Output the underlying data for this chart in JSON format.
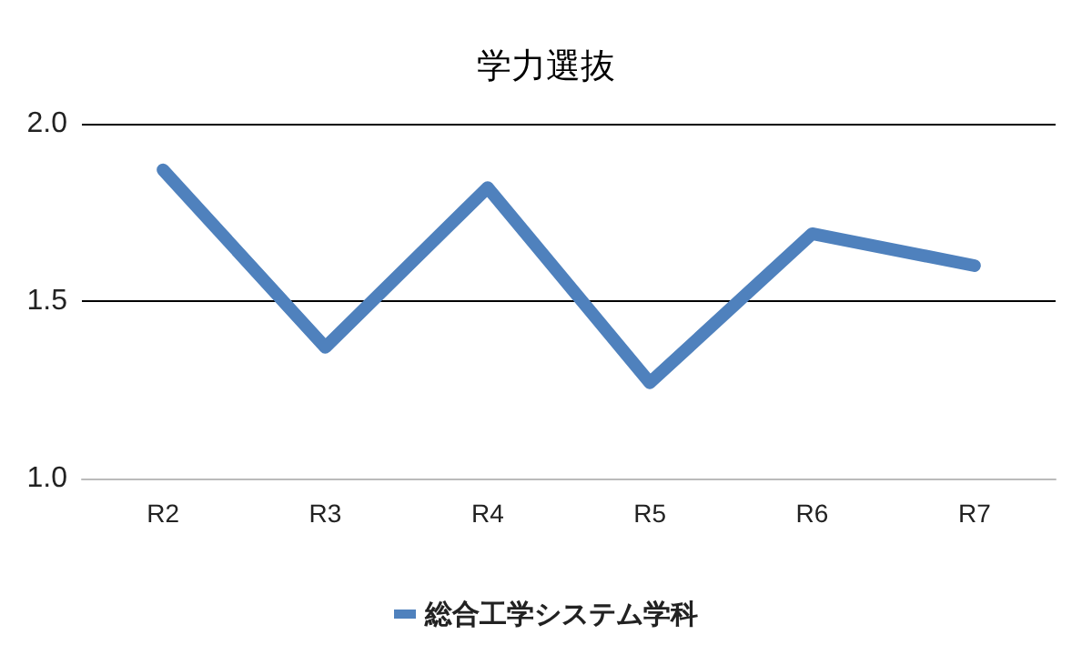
{
  "chart_data": {
    "type": "line",
    "title": "学力選抜",
    "categories": [
      "R2",
      "R3",
      "R4",
      "R5",
      "R6",
      "R7"
    ],
    "series": [
      {
        "name": "総合工学システム学科",
        "color": "#4f81bd",
        "values": [
          1.87,
          1.37,
          1.82,
          1.27,
          1.69,
          1.6
        ]
      }
    ],
    "ylim": [
      1.0,
      2.0
    ],
    "yticks": [
      {
        "value": 1.0,
        "label": "1.0"
      },
      {
        "value": 1.5,
        "label": "1.5"
      },
      {
        "value": 2.0,
        "label": "2.0"
      }
    ],
    "grid": "y",
    "legend": "bottom",
    "line_style": "solid"
  }
}
